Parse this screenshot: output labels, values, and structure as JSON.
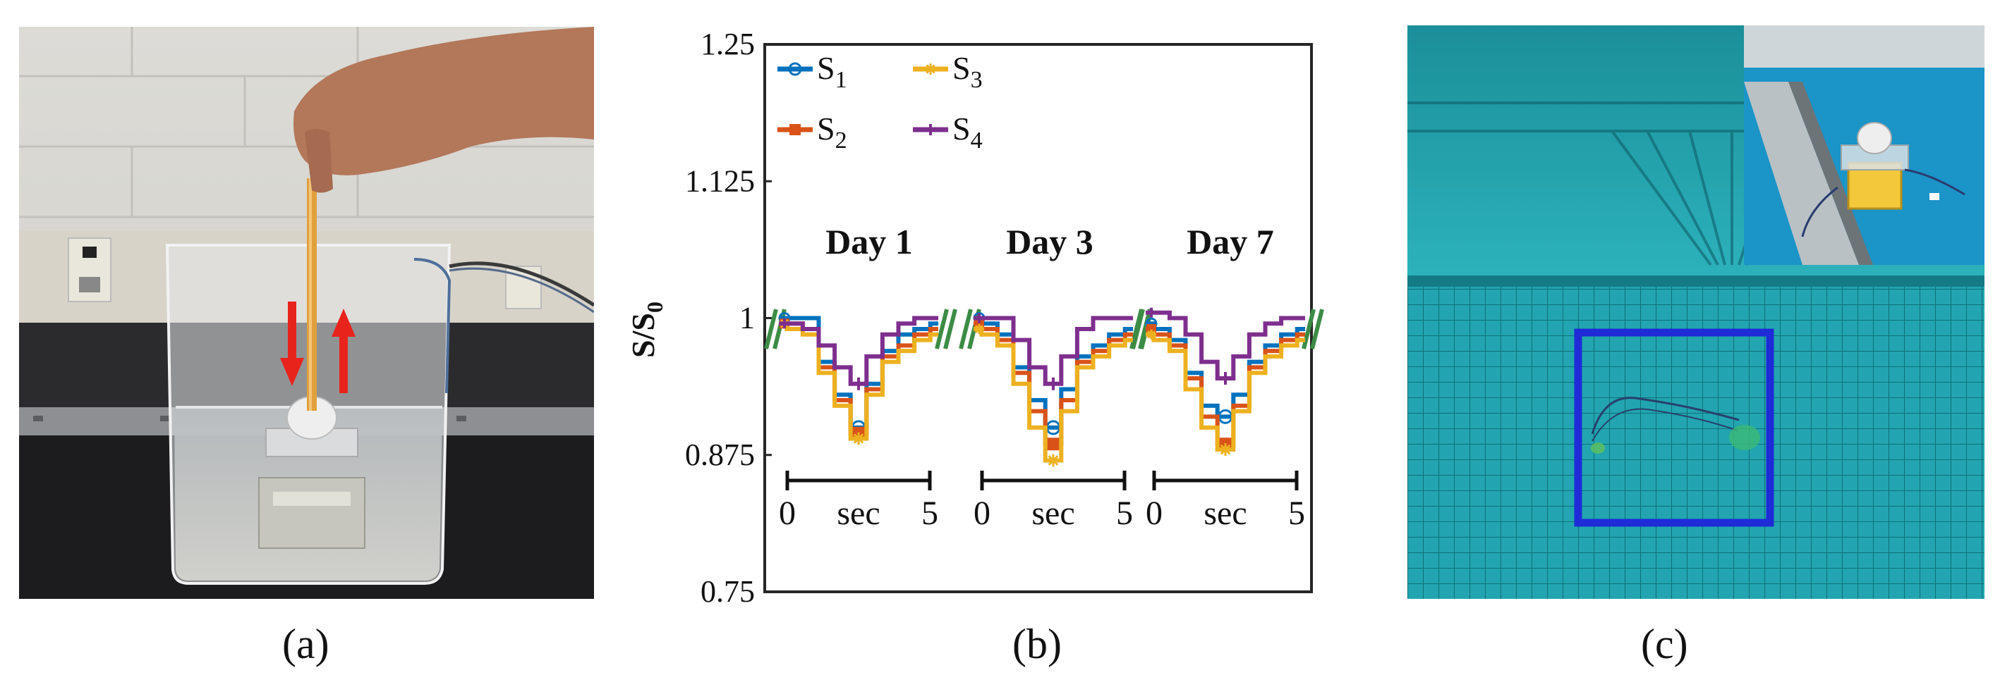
{
  "figure": {
    "panels": [
      {
        "id": "a",
        "label": "(a)"
      },
      {
        "id": "b",
        "label": "(b)"
      },
      {
        "id": "c",
        "label": "(c)"
      }
    ]
  },
  "chart_data": {
    "type": "line",
    "ylabel_main": "S/S",
    "ylabel_sub": "0",
    "ylim": [
      0.75,
      1.25
    ],
    "yticks": [
      0.75,
      0.875,
      1,
      1.125,
      1.25
    ],
    "ytick_labels": [
      "0.75",
      "0.875",
      "1",
      "1.125",
      "1.25"
    ],
    "grid": false,
    "legend_position": "top-left",
    "legend": [
      {
        "name": "S",
        "sub": "1",
        "color": "#0072BD",
        "marker": "circle"
      },
      {
        "name": "S",
        "sub": "2",
        "color": "#D95319",
        "marker": "square"
      },
      {
        "name": "S",
        "sub": "3",
        "color": "#EDB120",
        "marker": "star"
      },
      {
        "name": "S",
        "sub": "4",
        "color": "#7E2F8E",
        "marker": "plus"
      }
    ],
    "time_scale": {
      "start_label": "0",
      "unit_label": "sec",
      "end_label": "5"
    },
    "break_marker_color": "#3C8C46",
    "groups": [
      {
        "title": "Day 1",
        "t": [
          0,
          0.5,
          1.0,
          1.5,
          2.0,
          2.5,
          3.0,
          3.5,
          4.0,
          4.5,
          5.0
        ],
        "series": [
          {
            "name": "S1",
            "values": [
              1.0,
              1.0,
              1.0,
              0.96,
              0.93,
              0.9,
              0.94,
              0.97,
              0.985,
              0.99,
              0.995
            ]
          },
          {
            "name": "S2",
            "values": [
              0.995,
              0.995,
              0.99,
              0.955,
              0.925,
              0.895,
              0.935,
              0.965,
              0.975,
              0.985,
              0.99
            ]
          },
          {
            "name": "S3",
            "values": [
              0.995,
              0.99,
              0.985,
              0.95,
              0.92,
              0.89,
              0.93,
              0.96,
              0.97,
              0.98,
              0.985
            ]
          },
          {
            "name": "S4",
            "values": [
              0.995,
              0.995,
              0.99,
              0.975,
              0.955,
              0.94,
              0.965,
              0.985,
              0.995,
              1.0,
              1.0
            ]
          }
        ]
      },
      {
        "title": "Day 3",
        "t": [
          0,
          0.5,
          1.0,
          1.5,
          2.0,
          2.5,
          3.0,
          3.5,
          4.0,
          4.5,
          5.0
        ],
        "series": [
          {
            "name": "S1",
            "values": [
              1.0,
              0.995,
              0.985,
              0.955,
              0.925,
              0.9,
              0.935,
              0.965,
              0.975,
              0.985,
              0.99
            ]
          },
          {
            "name": "S2",
            "values": [
              0.995,
              0.99,
              0.98,
              0.95,
              0.915,
              0.885,
              0.925,
              0.96,
              0.97,
              0.98,
              0.985
            ]
          },
          {
            "name": "S3",
            "values": [
              0.99,
              0.985,
              0.975,
              0.94,
              0.9,
              0.87,
              0.915,
              0.955,
              0.965,
              0.975,
              0.98
            ]
          },
          {
            "name": "S4",
            "values": [
              1.0,
              1.0,
              1.0,
              0.98,
              0.955,
              0.94,
              0.965,
              0.99,
              1.0,
              1.0,
              1.0
            ]
          }
        ]
      },
      {
        "title": "Day 7",
        "t": [
          0,
          0.5,
          1.0,
          1.5,
          2.0,
          2.5,
          3.0,
          3.5,
          4.0,
          4.5,
          5.0
        ],
        "series": [
          {
            "name": "S1",
            "values": [
              0.995,
              0.99,
              0.98,
              0.95,
              0.92,
              0.91,
              0.93,
              0.96,
              0.975,
              0.985,
              0.99
            ]
          },
          {
            "name": "S2",
            "values": [
              0.99,
              0.985,
              0.975,
              0.945,
              0.91,
              0.885,
              0.92,
              0.955,
              0.97,
              0.98,
              0.985
            ]
          },
          {
            "name": "S3",
            "values": [
              0.985,
              0.98,
              0.97,
              0.935,
              0.9,
              0.88,
              0.915,
              0.95,
              0.965,
              0.975,
              0.98
            ]
          },
          {
            "name": "S4",
            "values": [
              1.005,
              1.005,
              1.0,
              0.985,
              0.96,
              0.945,
              0.965,
              0.985,
              0.995,
              1.0,
              1.0
            ]
          }
        ]
      }
    ]
  }
}
